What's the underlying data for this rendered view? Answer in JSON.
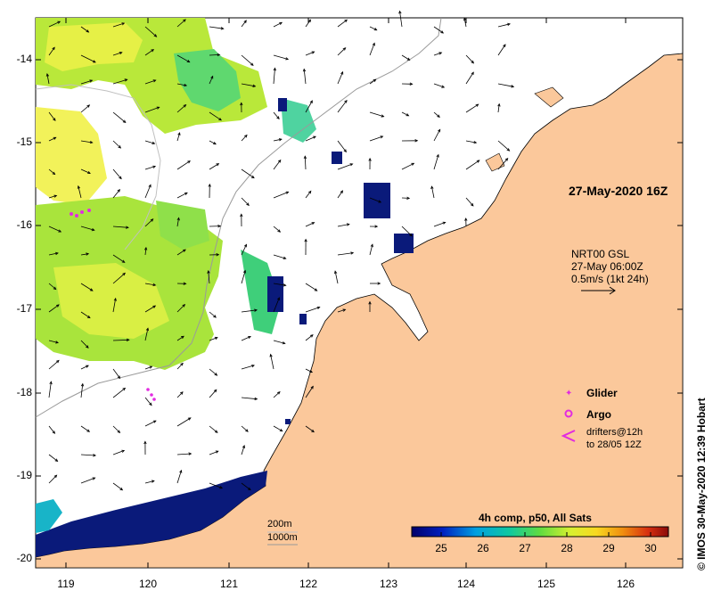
{
  "map": {
    "timestamp": "27-May-2020 16Z",
    "credit": "IMOS 30-May-2020 12:39 Hobart",
    "lat_ticks": [
      "-14",
      "-15",
      "-16",
      "-17",
      "-18",
      "-19",
      "-20"
    ],
    "lon_ticks": [
      "119",
      "120",
      "121",
      "122",
      "123",
      "124",
      "125",
      "126"
    ],
    "current_key": {
      "line1": "NRT00 GSL",
      "line2": "27-May 06:00Z",
      "line3": "0.5m/s (1kt 24h)"
    },
    "legend": {
      "glider": "Glider",
      "argo": "Argo",
      "drifters_line1": "drifters@12h",
      "drifters_line2": "to 28/05 12Z"
    },
    "isobaths": {
      "label_200": "200m",
      "label_1000": "1000m"
    },
    "colorbar": {
      "title": "4h comp, p50, All Sats",
      "ticks": [
        "25",
        "26",
        "27",
        "28",
        "29",
        "30"
      ],
      "range": [
        24.2,
        30.6
      ]
    },
    "colors": {
      "land": "#fbc89b",
      "sea": "#ffffff",
      "warm_sst": "#c6ee3a",
      "cool_sst": "#0a1a7a",
      "glider": "#e22be0"
    }
  }
}
